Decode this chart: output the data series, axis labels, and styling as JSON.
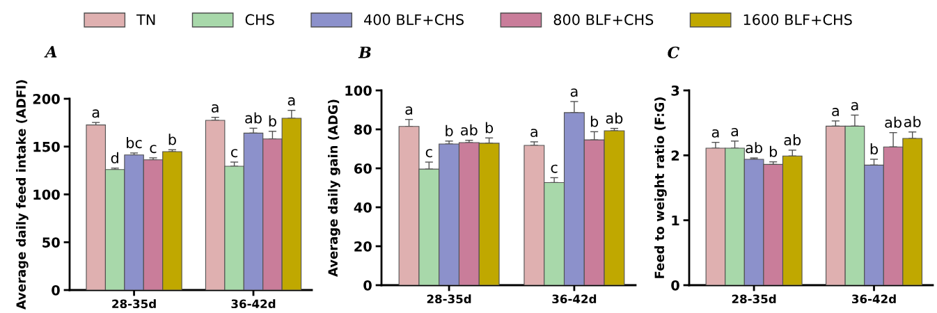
{
  "chart_data": [
    {
      "type": "bar",
      "title": "A",
      "ylabel": "Average daily feed intake (ADFI)",
      "categories": [
        "28-35d",
        "36-42d"
      ],
      "ylim": [
        0,
        200
      ],
      "yticks": [
        0,
        50,
        100,
        150,
        200
      ],
      "grid": false,
      "legend": "top",
      "series": [
        {
          "name": "TN",
          "color": "#dfb0b0",
          "values": [
            172.6,
            177.5
          ],
          "errors": [
            2.6,
            3.1
          ],
          "value_labels": [
            "a",
            "a"
          ]
        },
        {
          "name": "CHS",
          "color": "#a8d8aa",
          "values": [
            126,
            129.5
          ],
          "errors": [
            1.5,
            4.3
          ],
          "value_labels": [
            "d",
            "c"
          ]
        },
        {
          "name": "400 BLF+CHS",
          "color": "#8c91cb",
          "values": [
            141.3,
            164.1
          ],
          "errors": [
            2,
            5.1
          ],
          "value_labels": [
            "bc",
            "ab"
          ]
        },
        {
          "name": "800 BLF+CHS",
          "color": "#c97d9a",
          "values": [
            136.2,
            158
          ],
          "errors": [
            2,
            8
          ],
          "value_labels": [
            "c",
            "b"
          ]
        },
        {
          "name": "1600 BLF+CHS",
          "color": "#c0a800",
          "values": [
            144.7,
            179.6
          ],
          "errors": [
            2,
            8.3
          ],
          "value_labels": [
            "b",
            "a"
          ]
        }
      ]
    },
    {
      "type": "bar",
      "title": "B",
      "ylabel": "Average daily gain (ADG)",
      "categories": [
        "28-35d",
        "36-42d"
      ],
      "ylim": [
        0,
        100
      ],
      "yticks": [
        0,
        20,
        40,
        60,
        80,
        100
      ],
      "grid": false,
      "series": [
        {
          "color": "#dfb0b0",
          "values": [
            81.5,
            71.8
          ],
          "errors": [
            3.6,
            1.8
          ],
          "value_labels": [
            "a",
            "a"
          ]
        },
        {
          "color": "#a8d8aa",
          "values": [
            59.6,
            52.7
          ],
          "errors": [
            3.6,
            2.5
          ],
          "value_labels": [
            "c",
            "c"
          ]
        },
        {
          "color": "#8c91cb",
          "values": [
            72.5,
            88.6
          ],
          "errors": [
            1.5,
            5.7
          ],
          "value_labels": [
            "b",
            "a"
          ]
        },
        {
          "color": "#c97d9a",
          "values": [
            73.2,
            74.6
          ],
          "errors": [
            1.2,
            4.2
          ],
          "value_labels": [
            "ab",
            "b"
          ]
        },
        {
          "color": "#c0a800",
          "values": [
            72.9,
            79.3
          ],
          "errors": [
            2.7,
            1.2
          ],
          "value_labels": [
            "b",
            "ab"
          ]
        }
      ]
    },
    {
      "type": "bar",
      "title": "C",
      "ylabel": "Feed to weight ratio (F:G)",
      "categories": [
        "28-35d",
        "36-42d"
      ],
      "ylim": [
        0,
        3
      ],
      "yticks": [
        0,
        1,
        2,
        3
      ],
      "grid": false,
      "series": [
        {
          "color": "#dfb0b0",
          "values": [
            2.11,
            2.45
          ],
          "errors": [
            0.09,
            0.08
          ],
          "value_labels": [
            "a",
            "a"
          ]
        },
        {
          "color": "#a8d8aa",
          "values": [
            2.11,
            2.45
          ],
          "errors": [
            0.11,
            0.17
          ],
          "value_labels": [
            "a",
            "a"
          ]
        },
        {
          "color": "#8c91cb",
          "values": [
            1.94,
            1.85
          ],
          "errors": [
            0.02,
            0.09
          ],
          "value_labels": [
            "ab",
            "b"
          ]
        },
        {
          "color": "#c97d9a",
          "values": [
            1.86,
            2.13
          ],
          "errors": [
            0.04,
            0.22
          ],
          "value_labels": [
            "b",
            "ab"
          ]
        },
        {
          "color": "#c0a800",
          "values": [
            1.99,
            2.26
          ],
          "errors": [
            0.09,
            0.1
          ],
          "value_labels": [
            "ab",
            "ab"
          ]
        }
      ]
    }
  ]
}
